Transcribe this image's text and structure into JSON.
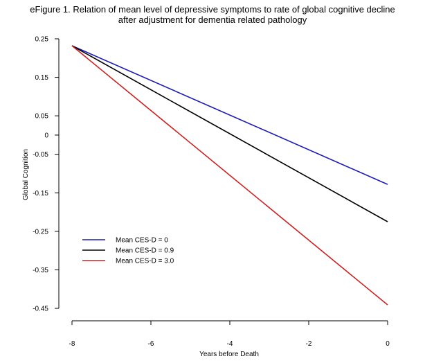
{
  "chart_data": {
    "type": "line",
    "title_lines": [
      "eFigure 1. Relation of mean level of depressive symptoms to rate of global cognitive decline",
      "after adjustment for dementia related pathology"
    ],
    "xlabel": "Years before Death",
    "ylabel": "Global Cognition",
    "xlim": [
      -8,
      0
    ],
    "ylim": [
      -0.45,
      0.25
    ],
    "x_ticks": [
      "-8",
      "-6",
      "-4",
      "-2",
      "0"
    ],
    "x_tick_values": [
      -8,
      -6,
      -4,
      -2,
      0
    ],
    "y_ticks": [
      "0.25",
      "0.15",
      "0.05",
      "0",
      "-0.05",
      "-0.15",
      "-0.25",
      "-0.35",
      "-0.45"
    ],
    "y_tick_values": [
      0.25,
      0.15,
      0.05,
      0,
      -0.05,
      -0.15,
      -0.25,
      -0.35,
      -0.45
    ],
    "grid": false,
    "legend_position": "bottom-left",
    "series": [
      {
        "name": "Mean CES-D = 0",
        "color": "#1c1cb4",
        "x": [
          -8,
          0
        ],
        "y": [
          0.232,
          -0.128
        ]
      },
      {
        "name": "Mean CES-D = 0.9",
        "color": "#000000",
        "x": [
          -8,
          0
        ],
        "y": [
          0.232,
          -0.225
        ]
      },
      {
        "name": "Mean CES-D = 3.0",
        "color": "#cc2222",
        "x": [
          -8,
          0
        ],
        "y": [
          0.232,
          -0.441
        ]
      }
    ]
  }
}
